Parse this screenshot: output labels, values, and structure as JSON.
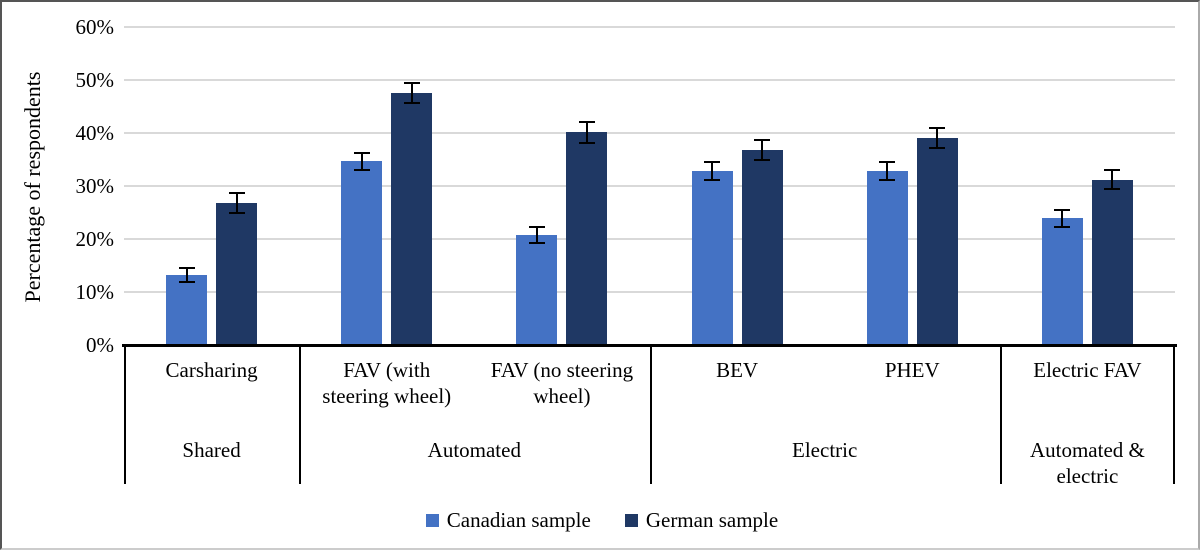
{
  "chart_data": {
    "type": "bar",
    "title": "",
    "ylabel": "Percentage of respondents",
    "xlabel": "",
    "ylim": [
      0,
      60
    ],
    "ytick_labels": [
      "0%",
      "10%",
      "20%",
      "30%",
      "40%",
      "50%",
      "60%"
    ],
    "grid": true,
    "legend_position": "bottom",
    "categories": [
      "Carsharing",
      "FAV (with\nsteering wheel)",
      "FAV (no steering\nwheel)",
      "BEV",
      "PHEV",
      "Electric FAV"
    ],
    "category_groups": [
      {
        "label": "Shared",
        "span": 1
      },
      {
        "label": "Automated",
        "span": 2
      },
      {
        "label": "Electric",
        "span": 2
      },
      {
        "label": "Automated &\nelectric",
        "span": 1
      }
    ],
    "series": [
      {
        "name": "Canadian sample",
        "color": "#4472C4",
        "values": [
          13.2,
          34.7,
          20.7,
          32.9,
          32.9,
          23.9
        ],
        "errors": [
          1.3,
          1.6,
          1.5,
          1.7,
          1.7,
          1.6
        ]
      },
      {
        "name": "German sample",
        "color": "#1F3864",
        "values": [
          26.8,
          47.5,
          40.1,
          36.8,
          39.0,
          31.2
        ],
        "errors": [
          1.8,
          1.9,
          1.9,
          1.9,
          1.9,
          1.8
        ]
      }
    ]
  },
  "colors": {
    "gridline": "#D9D9D9",
    "axis": "#000000",
    "error_bar": "#000000"
  }
}
